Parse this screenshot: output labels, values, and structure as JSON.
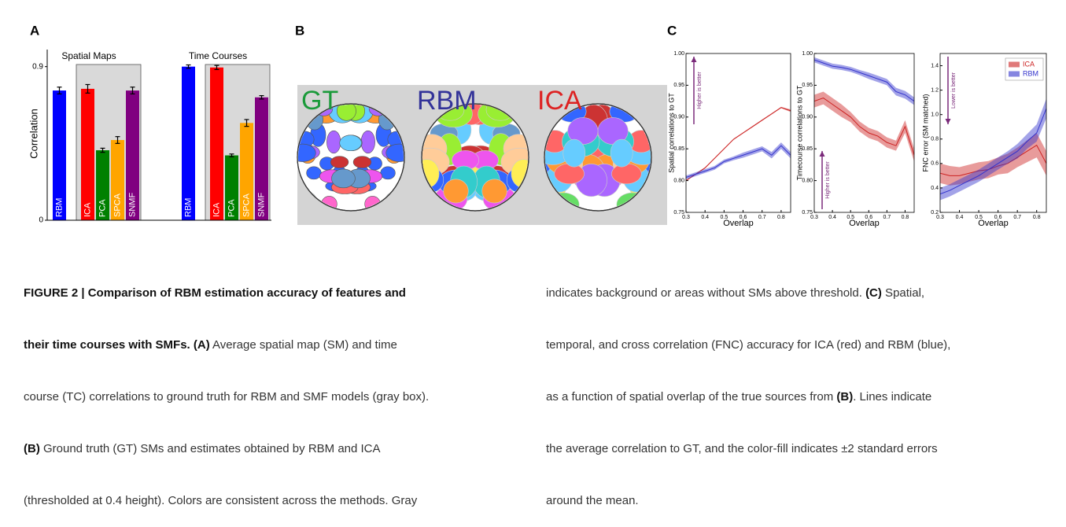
{
  "panel_labels": [
    "A",
    "B",
    "C"
  ],
  "panel_b": {
    "labels": [
      "GT",
      "RBM",
      "ICA"
    ]
  },
  "chart_data": [
    {
      "type": "bar",
      "ylabel": "Correlation",
      "ylim": [
        0,
        1
      ],
      "yticks": [
        0,
        0.9
      ],
      "groups": [
        {
          "name": "Spatial Maps",
          "categories": [
            "RBM",
            "ICA",
            "PCA",
            "SPCA",
            "SNMF"
          ],
          "values": [
            0.76,
            0.77,
            0.41,
            0.47,
            0.76
          ],
          "errors": [
            0.02,
            0.025,
            0.012,
            0.02,
            0.02
          ],
          "colors": [
            "#0000ff",
            "#ff0000",
            "#008000",
            "#ffa500",
            "#800080"
          ]
        },
        {
          "name": "Time Courses",
          "categories": [
            "RBM",
            "ICA",
            "PCA",
            "SPCA",
            "SNMF"
          ],
          "values": [
            0.9,
            0.895,
            0.38,
            0.57,
            0.72
          ],
          "errors": [
            0.01,
            0.012,
            0.008,
            0.02,
            0.01
          ],
          "colors": [
            "#0000ff",
            "#ff0000",
            "#008000",
            "#ffa500",
            "#800080"
          ]
        }
      ]
    },
    {
      "type": "band",
      "ylabel": "Spatial correlations to GT",
      "xlabel": "Overlap",
      "annotation": "Higher is better",
      "x": [
        0.3,
        0.35,
        0.4,
        0.45,
        0.5,
        0.55,
        0.6,
        0.65,
        0.7,
        0.75,
        0.8,
        0.85
      ],
      "xlim": [
        0.3,
        0.85
      ],
      "xticks": [
        0.3,
        0.4,
        0.5,
        0.6,
        0.7,
        0.8
      ],
      "ylim": [
        0.75,
        1
      ],
      "yticks": [
        {
          "value": 0.75,
          "label": "0.75"
        },
        {
          "value": 0.8,
          "label": "0.80"
        },
        {
          "value": 0.85,
          "label": "0.85"
        },
        {
          "value": 0.9,
          "label": "0.90"
        },
        {
          "value": 0.95,
          "label": "0.95"
        },
        {
          "value": 1,
          "label": "1.00"
        }
      ],
      "series": [
        {
          "name": "ICA",
          "color": "#cc2222",
          "values": [
            0.8,
            0.81,
            0.82,
            0.835,
            0.85,
            0.865,
            0.875,
            0.885,
            0.895,
            0.905,
            0.915,
            0.91
          ],
          "errors": [
            0.001,
            0.001,
            0.001,
            0.001,
            0.001,
            0.001,
            0.001,
            0.001,
            0.001,
            0.001,
            0.001,
            0.002
          ]
        },
        {
          "name": "RBM",
          "color": "#3333cc",
          "values": [
            0.805,
            0.81,
            0.815,
            0.82,
            0.83,
            0.835,
            0.84,
            0.845,
            0.85,
            0.84,
            0.855,
            0.84
          ],
          "errors": [
            0.003,
            0.003,
            0.003,
            0.003,
            0.003,
            0.003,
            0.004,
            0.004,
            0.004,
            0.005,
            0.005,
            0.005
          ]
        }
      ]
    },
    {
      "type": "band",
      "ylabel": "Timecourse correlations to GT",
      "xlabel": "Overlap",
      "annotation": "Higher is better",
      "x": [
        0.3,
        0.35,
        0.4,
        0.45,
        0.5,
        0.55,
        0.6,
        0.65,
        0.7,
        0.75,
        0.8,
        0.85
      ],
      "xlim": [
        0.3,
        0.85
      ],
      "xticks": [
        0.3,
        0.4,
        0.5,
        0.6,
        0.7,
        0.8
      ],
      "ylim": [
        0.75,
        1
      ],
      "yticks": [
        {
          "value": 0.75,
          "label": "0.75"
        },
        {
          "value": 0.8,
          "label": "0.80"
        },
        {
          "value": 0.85,
          "label": "0.85"
        },
        {
          "value": 0.9,
          "label": "0.90"
        },
        {
          "value": 0.95,
          "label": "0.95"
        },
        {
          "value": 1,
          "label": "1.00"
        }
      ],
      "series": [
        {
          "name": "ICA",
          "color": "#cc2222",
          "values": [
            0.925,
            0.93,
            0.92,
            0.91,
            0.9,
            0.885,
            0.875,
            0.87,
            0.86,
            0.855,
            0.885,
            0.84
          ],
          "errors": [
            0.01,
            0.01,
            0.01,
            0.01,
            0.008,
            0.008,
            0.008,
            0.008,
            0.008,
            0.008,
            0.01,
            0.01
          ]
        },
        {
          "name": "RBM",
          "color": "#3333cc",
          "values": [
            0.99,
            0.985,
            0.98,
            0.978,
            0.975,
            0.97,
            0.965,
            0.96,
            0.955,
            0.94,
            0.935,
            0.925
          ],
          "errors": [
            0.004,
            0.004,
            0.004,
            0.004,
            0.004,
            0.004,
            0.005,
            0.005,
            0.005,
            0.006,
            0.006,
            0.006
          ]
        }
      ]
    },
    {
      "type": "band",
      "ylabel": "FNC error (SM matched)",
      "xlabel": "Overlap",
      "annotation": "Lower is better",
      "legend": "upper right",
      "x": [
        0.3,
        0.35,
        0.4,
        0.45,
        0.5,
        0.55,
        0.6,
        0.65,
        0.7,
        0.75,
        0.8,
        0.85
      ],
      "xlim": [
        0.3,
        0.85
      ],
      "xticks": [
        0.3,
        0.4,
        0.5,
        0.6,
        0.7,
        0.8
      ],
      "ylim": [
        0.2,
        1.5
      ],
      "yticks": [
        0.2,
        0.4,
        0.6,
        0.8,
        {
          "value": 1,
          "label": "1.0"
        },
        1.2,
        1.4
      ],
      "series": [
        {
          "name": "ICA",
          "color": "#cc2222",
          "values": [
            0.52,
            0.5,
            0.5,
            0.52,
            0.54,
            0.55,
            0.58,
            0.6,
            0.65,
            0.7,
            0.75,
            0.6
          ],
          "errors": [
            0.08,
            0.08,
            0.07,
            0.07,
            0.07,
            0.07,
            0.07,
            0.08,
            0.08,
            0.09,
            0.1,
            0.1
          ]
        },
        {
          "name": "RBM",
          "color": "#3333cc",
          "values": [
            0.35,
            0.38,
            0.42,
            0.46,
            0.5,
            0.55,
            0.6,
            0.65,
            0.7,
            0.78,
            0.85,
            1.05
          ],
          "errors": [
            0.05,
            0.05,
            0.05,
            0.05,
            0.05,
            0.05,
            0.05,
            0.05,
            0.06,
            0.06,
            0.07,
            0.08
          ]
        }
      ]
    }
  ],
  "caption": {
    "left": [
      [
        "FIGURE 2 | Comparison of RBM estimation accuracy of features and"
      ],
      [
        "their time courses with SMFs. (A)",
        " Average spatial map (SM) and time"
      ],
      [
        "course (TC) correlations to ground truth for RBM and SMF models (gray box)."
      ],
      [
        "(B)",
        " Ground truth (GT) SMs and estimates obtained by RBM and ICA"
      ],
      [
        "(thresholded at 0.4 height). Colors are consistent across the methods. Gray"
      ]
    ],
    "right": [
      [
        "indicates background or areas without SMs above threshold. ",
        "(C)",
        " Spatial,"
      ],
      [
        "temporal, and cross correlation (FNC) accuracy for ICA (red) and RBM (blue),"
      ],
      [
        "as a function of spatial overlap of the true sources from ",
        "(B)",
        ". Lines indicate"
      ],
      [
        "the average correlation to GT, and the color-fill indicates ±2 standard errors"
      ],
      [
        "around the mean."
      ]
    ]
  }
}
